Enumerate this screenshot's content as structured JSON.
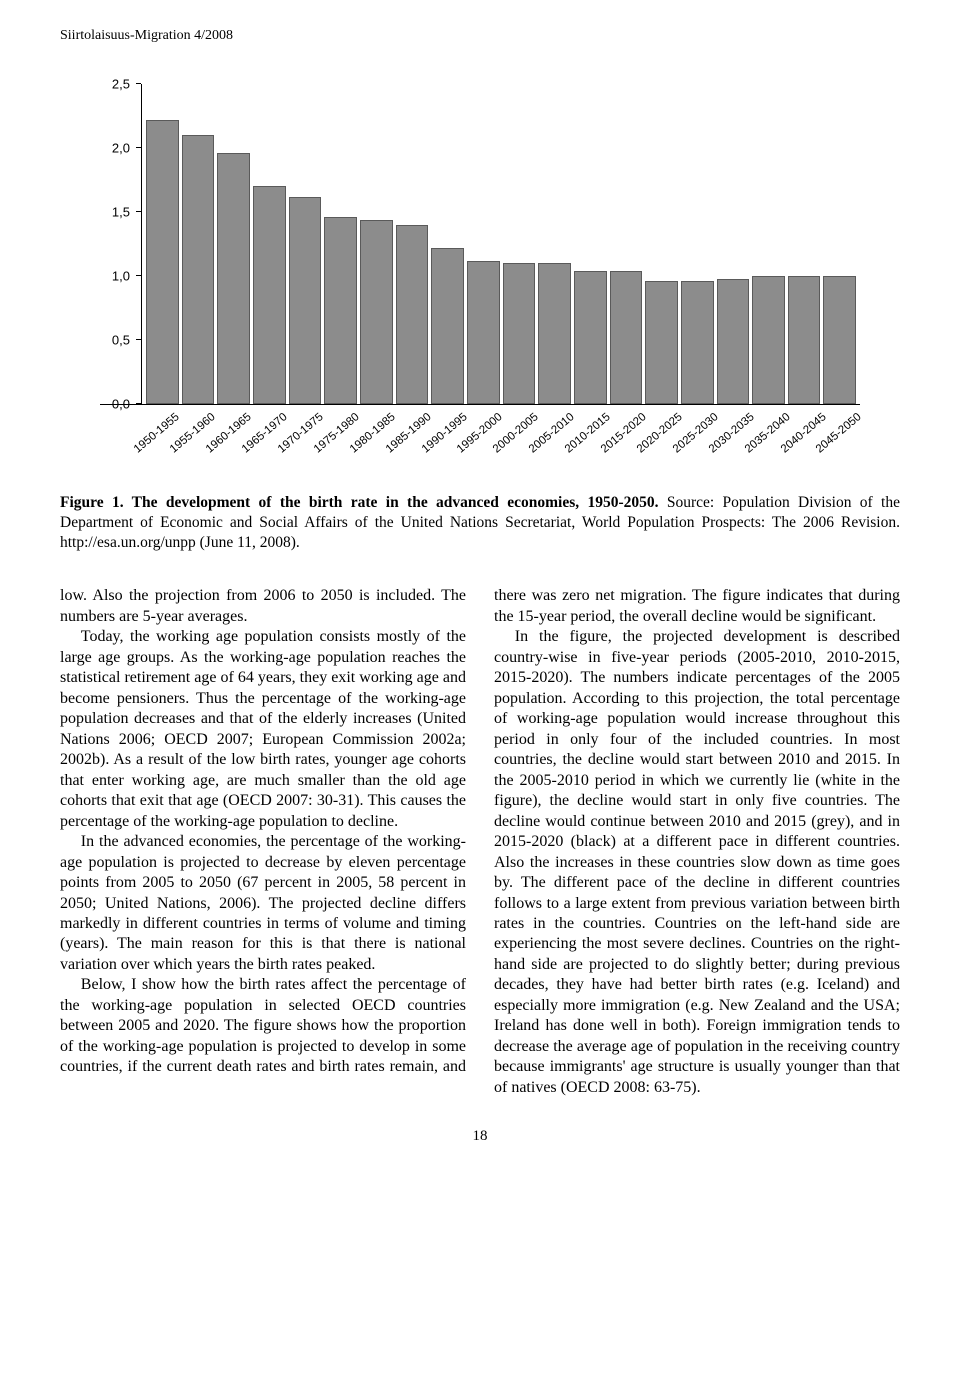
{
  "running_head": "Siirtolaisuus-Migration 4/2008",
  "page_number": "18",
  "chart": {
    "type": "bar",
    "y_ticks": [
      "0,0",
      "0,5",
      "1,0",
      "1,5",
      "2,0",
      "2,5"
    ],
    "y_max": 2.5,
    "bar_color": "#8c8c8c",
    "bar_border": "#5a5a5a",
    "background_color": "#ffffff",
    "categories": [
      "1950-1955",
      "1955-1960",
      "1960-1965",
      "1965-1970",
      "1970-1975",
      "1975-1980",
      "1980-1985",
      "1985-1990",
      "1990-1995",
      "1995-2000",
      "2000-2005",
      "2005-2010",
      "2010-2015",
      "2015-2020",
      "2020-2025",
      "2025-2030",
      "2030-2035",
      "2035-2040",
      "2040-2045",
      "2045-2050"
    ],
    "values": [
      2.22,
      2.1,
      1.96,
      1.7,
      1.62,
      1.46,
      1.44,
      1.4,
      1.22,
      1.12,
      1.1,
      1.1,
      1.04,
      1.04,
      0.96,
      0.96,
      0.98,
      1.0,
      1.0,
      1.0
    ]
  },
  "caption": {
    "lead": "Figure 1. The development of the birth rate in the advanced economies, 1950-2050.",
    "rest": " Source: Population Division of the Department of Economic and Social Affairs of the United Nations Secretariat, World Population Prospects: The 2006 Revision. http://esa.un.org/unpp (June 11, 2008)."
  },
  "body": {
    "p1": "low. Also the projection from 2006 to 2050 is included. The numbers are 5-year averages.",
    "p2": "Today, the working age population consists mostly of the large age groups. As the working-age population reaches the statistical retirement age of 64 years, they exit working age and become pensioners. Thus the percentage of the working-age population decreases and that of the elderly increases (United Nations 2006; OECD 2007; European Commission 2002a; 2002b). As a result of the low birth rates, younger age cohorts that enter working age, are much smaller than the old age cohorts that exit that age (OECD 2007: 30-31). This causes the percentage of the working-age population to decline.",
    "p3": "In the advanced economies, the percentage of the working-age population is projected to decrease by eleven percentage points from 2005 to 2050 (67 percent in 2005, 58 percent in 2050; United Nations, 2006). The projected decline differs markedly in different countries in terms of volume and timing (years). The main reason for this is that there is national variation over which years the birth rates peaked.",
    "p4": "Below, I show how the birth rates affect the percentage of the working-age population in selected OECD countries between 2005 and 2020. The figure shows how the proportion of the working-age population is projected to develop in some countries, if the current death rates and birth rates remain, and there was zero net migration. The figure indicates that during the 15-year period, the overall decline would be significant.",
    "p5": "In the figure, the projected development is described country-wise in five-year periods (2005-2010, 2010-2015, 2015-2020). The numbers indicate percentages of the 2005 population. According to this projection, the total percentage of working-age population would increase throughout this period in only four of the included countries. In most countries, the decline would start between 2010 and 2015. In the 2005-2010 period in which we currently lie (white in the figure), the decline would start in only five countries. The decline would continue between 2010 and 2015 (grey), and in 2015-2020 (black) at a different pace in different countries. Also the increases in these countries slow down as time goes by. The different pace of the decline in different countries follows to a large extent from previous variation between birth rates in the countries. Countries on the left-hand side are experiencing the most severe declines. Countries on the right-hand side are projected to do slightly better; during previous decades, they have had better birth rates (e.g. Iceland) and especially more immigration (e.g. New Zealand and the USA; Ireland has done well in both). Foreign immigration tends to decrease the average age of population in the receiving country because immigrants' age structure is usually younger than that of natives (OECD 2008: 63-75)."
  }
}
